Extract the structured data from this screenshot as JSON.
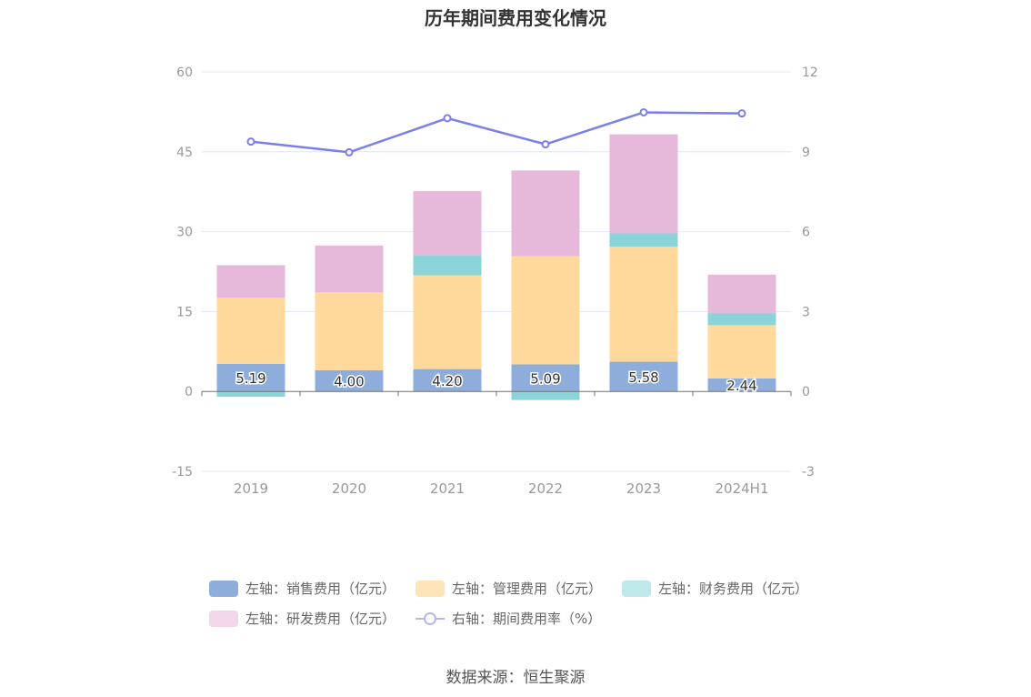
{
  "title": "历年期间费用变化情况",
  "source": "数据来源：恒生聚源",
  "colors": {
    "sales": "#8eaddb",
    "admin": "#ffd99b",
    "finance": "#8ad4d8",
    "rd": "#e6b9da",
    "rate": "#7b7fe8"
  },
  "legend": [
    {
      "label": "左轴：销售费用（亿元）",
      "color": "#8eaddb",
      "kind": "box"
    },
    {
      "label": "左轴：管理费用（亿元）",
      "color": "#ffe4b8",
      "kind": "box"
    },
    {
      "label": "左轴：财务费用（亿元）",
      "color": "#bfe8ea",
      "kind": "box"
    },
    {
      "label": "左轴：研发费用（亿元）",
      "color": "#f2d6ea",
      "kind": "box"
    },
    {
      "label": "右轴：期间费用率（%）",
      "color": "#b4b6f0",
      "kind": "line"
    }
  ],
  "chart_data": {
    "type": "bar",
    "stacked": true,
    "categories": [
      "2019",
      "2020",
      "2021",
      "2022",
      "2023",
      "2024H1"
    ],
    "left_axis": {
      "ticks": [
        "-15",
        "0",
        "15",
        "30",
        "45",
        "60"
      ],
      "ylim": [
        -15,
        60
      ]
    },
    "right_axis": {
      "ticks": [
        "-3",
        "0",
        "3",
        "6",
        "9",
        "12"
      ],
      "ylim": [
        -3,
        12
      ]
    },
    "series": [
      {
        "name": "左轴：销售费用（亿元）",
        "axis": "left",
        "values": [
          5.19,
          4.0,
          4.2,
          5.09,
          5.58,
          2.44
        ],
        "labels": [
          "5.19",
          "4.00",
          "4.20",
          "5.09",
          "5.58",
          "2.44"
        ]
      },
      {
        "name": "左轴：管理费用（亿元）",
        "axis": "left",
        "values": [
          12.4,
          14.6,
          17.6,
          20.3,
          21.6,
          10.0
        ]
      },
      {
        "name": "左轴：财务费用（亿元）",
        "axis": "left",
        "values": [
          -1.0,
          0.0,
          3.8,
          -1.6,
          2.5,
          2.2
        ]
      },
      {
        "name": "左轴：研发费用（亿元）",
        "axis": "left",
        "values": [
          6.1,
          8.8,
          12.0,
          16.1,
          18.6,
          7.3
        ]
      },
      {
        "name": "右轴：期间费用率（%）",
        "axis": "right",
        "type": "line",
        "values": [
          9.38,
          8.98,
          10.26,
          9.28,
          10.48,
          10.44
        ]
      }
    ],
    "grid": true
  }
}
